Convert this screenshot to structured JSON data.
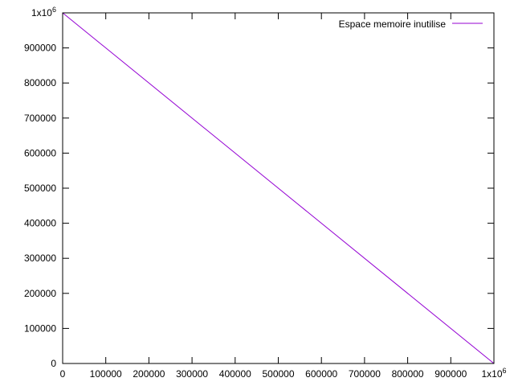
{
  "chart_data": {
    "type": "line",
    "title": "",
    "xlabel": "",
    "ylabel": "",
    "xlim": [
      0,
      1000000
    ],
    "ylim": [
      0,
      1000000
    ],
    "grid": false,
    "legend_position": "top-right",
    "x_ticks": [
      {
        "value": 0,
        "label": "0"
      },
      {
        "value": 100000,
        "label": "100000"
      },
      {
        "value": 200000,
        "label": "200000"
      },
      {
        "value": 300000,
        "label": "300000"
      },
      {
        "value": 400000,
        "label": "400000"
      },
      {
        "value": 500000,
        "label": "500000"
      },
      {
        "value": 600000,
        "label": "600000"
      },
      {
        "value": 700000,
        "label": "700000"
      },
      {
        "value": 800000,
        "label": "800000"
      },
      {
        "value": 900000,
        "label": "900000"
      },
      {
        "value": 1000000,
        "label": "1x10",
        "exp": "6"
      }
    ],
    "y_ticks": [
      {
        "value": 0,
        "label": "0"
      },
      {
        "value": 100000,
        "label": "100000"
      },
      {
        "value": 200000,
        "label": "200000"
      },
      {
        "value": 300000,
        "label": "300000"
      },
      {
        "value": 400000,
        "label": "400000"
      },
      {
        "value": 500000,
        "label": "500000"
      },
      {
        "value": 600000,
        "label": "600000"
      },
      {
        "value": 700000,
        "label": "700000"
      },
      {
        "value": 800000,
        "label": "800000"
      },
      {
        "value": 900000,
        "label": "900000"
      },
      {
        "value": 1000000,
        "label": "1x10",
        "exp": "6"
      }
    ],
    "series": [
      {
        "name": "Espace memoire inutilise",
        "color": "#9400d3",
        "x": [
          0,
          1000000
        ],
        "y": [
          1000000,
          0
        ]
      }
    ]
  }
}
